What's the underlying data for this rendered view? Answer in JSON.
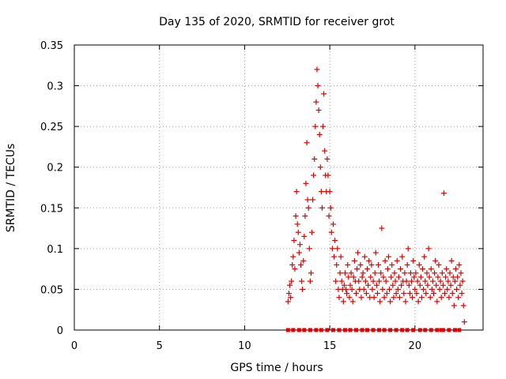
{
  "chart_data": {
    "type": "scatter",
    "title": "Day 135 of 2020, SRMTID for receiver grot",
    "xlabel": "GPS time / hours",
    "ylabel": "SRMTID / TECUs",
    "xlim": [
      0,
      24
    ],
    "ylim": [
      0,
      0.35
    ],
    "x_ticks": [
      0,
      5,
      10,
      15,
      20
    ],
    "x_tick_labels": [
      "0",
      "5",
      "10",
      "15",
      "20"
    ],
    "y_ticks": [
      0,
      0.05,
      0.1,
      0.15,
      0.2,
      0.25,
      0.3,
      0.35
    ],
    "y_tick_labels": [
      "0",
      "0.05",
      "0.1",
      "0.15",
      "0.2",
      "0.25",
      "0.3",
      "0.35"
    ],
    "grid": true,
    "marker": "+",
    "color": "#e00000",
    "series": [
      {
        "name": "SRMTID",
        "points": [
          [
            12.55,
            0.035
          ],
          [
            12.6,
            0.045
          ],
          [
            12.65,
            0.055
          ],
          [
            12.7,
            0.04
          ],
          [
            12.75,
            0.06
          ],
          [
            12.8,
            0.08
          ],
          [
            12.85,
            0.09
          ],
          [
            12.9,
            0.11
          ],
          [
            12.95,
            0.075
          ],
          [
            13.0,
            0.14
          ],
          [
            13.05,
            0.17
          ],
          [
            13.1,
            0.13
          ],
          [
            13.15,
            0.12
          ],
          [
            13.2,
            0.095
          ],
          [
            13.25,
            0.105
          ],
          [
            13.3,
            0.08
          ],
          [
            13.35,
            0.06
          ],
          [
            13.4,
            0.05
          ],
          [
            13.45,
            0.085
          ],
          [
            13.5,
            0.115
          ],
          [
            13.55,
            0.14
          ],
          [
            13.6,
            0.18
          ],
          [
            13.65,
            0.23
          ],
          [
            13.7,
            0.16
          ],
          [
            13.75,
            0.15
          ],
          [
            13.8,
            0.1
          ],
          [
            13.85,
            0.06
          ],
          [
            13.9,
            0.07
          ],
          [
            13.95,
            0.12
          ],
          [
            14.0,
            0.16
          ],
          [
            14.05,
            0.19
          ],
          [
            14.1,
            0.21
          ],
          [
            14.15,
            0.25
          ],
          [
            14.2,
            0.28
          ],
          [
            14.25,
            0.32
          ],
          [
            14.3,
            0.3
          ],
          [
            14.35,
            0.27
          ],
          [
            14.4,
            0.24
          ],
          [
            14.45,
            0.2
          ],
          [
            14.5,
            0.17
          ],
          [
            14.55,
            0.15
          ],
          [
            14.6,
            0.25
          ],
          [
            14.65,
            0.29
          ],
          [
            14.7,
            0.22
          ],
          [
            14.75,
            0.19
          ],
          [
            14.8,
            0.17
          ],
          [
            14.85,
            0.21
          ],
          [
            14.9,
            0.19
          ],
          [
            14.95,
            0.14
          ],
          [
            15.0,
            0.17
          ],
          [
            15.05,
            0.15
          ],
          [
            15.1,
            0.12
          ],
          [
            15.15,
            0.1
          ],
          [
            15.2,
            0.13
          ],
          [
            15.25,
            0.09
          ],
          [
            15.3,
            0.11
          ],
          [
            15.35,
            0.06
          ],
          [
            15.4,
            0.08
          ],
          [
            15.45,
            0.1
          ],
          [
            15.5,
            0.05
          ],
          [
            15.55,
            0.04
          ],
          [
            15.6,
            0.07
          ],
          [
            15.65,
            0.09
          ],
          [
            15.7,
            0.06
          ],
          [
            15.75,
            0.05
          ],
          [
            15.8,
            0.035
          ],
          [
            15.85,
            0.055
          ],
          [
            15.9,
            0.07
          ],
          [
            15.95,
            0.05
          ],
          [
            16.0,
            0.045
          ],
          [
            16.05,
            0.08
          ],
          [
            16.1,
            0.065
          ],
          [
            16.15,
            0.04
          ],
          [
            16.2,
            0.055
          ],
          [
            16.25,
            0.07
          ],
          [
            16.3,
            0.05
          ],
          [
            16.35,
            0.035
          ],
          [
            16.4,
            0.065
          ],
          [
            16.45,
            0.085
          ],
          [
            16.5,
            0.06
          ],
          [
            16.55,
            0.045
          ],
          [
            16.6,
            0.075
          ],
          [
            16.65,
            0.095
          ],
          [
            16.7,
            0.06
          ],
          [
            16.75,
            0.05
          ],
          [
            16.8,
            0.08
          ],
          [
            16.85,
            0.04
          ],
          [
            16.9,
            0.065
          ],
          [
            16.95,
            0.07
          ],
          [
            17.0,
            0.05
          ],
          [
            17.05,
            0.09
          ],
          [
            17.1,
            0.06
          ],
          [
            17.15,
            0.045
          ],
          [
            17.2,
            0.075
          ],
          [
            17.25,
            0.055
          ],
          [
            17.3,
            0.085
          ],
          [
            17.35,
            0.04
          ],
          [
            17.4,
            0.065
          ],
          [
            17.45,
            0.08
          ],
          [
            17.5,
            0.05
          ],
          [
            17.55,
            0.06
          ],
          [
            17.6,
            0.04
          ],
          [
            17.65,
            0.07
          ],
          [
            17.7,
            0.095
          ],
          [
            17.75,
            0.055
          ],
          [
            17.8,
            0.045
          ],
          [
            17.85,
            0.08
          ],
          [
            17.9,
            0.06
          ],
          [
            17.95,
            0.035
          ],
          [
            18.0,
            0.07
          ],
          [
            18.05,
            0.125
          ],
          [
            18.1,
            0.05
          ],
          [
            18.15,
            0.065
          ],
          [
            18.2,
            0.04
          ],
          [
            18.25,
            0.085
          ],
          [
            18.3,
            0.06
          ],
          [
            18.35,
            0.045
          ],
          [
            18.4,
            0.075
          ],
          [
            18.45,
            0.09
          ],
          [
            18.5,
            0.05
          ],
          [
            18.55,
            0.035
          ],
          [
            18.6,
            0.065
          ],
          [
            18.65,
            0.08
          ],
          [
            18.7,
            0.055
          ],
          [
            18.75,
            0.04
          ],
          [
            18.8,
            0.07
          ],
          [
            18.85,
            0.06
          ],
          [
            18.9,
            0.045
          ],
          [
            18.95,
            0.085
          ],
          [
            19.0,
            0.05
          ],
          [
            19.05,
            0.065
          ],
          [
            19.1,
            0.04
          ],
          [
            19.15,
            0.075
          ],
          [
            19.2,
            0.055
          ],
          [
            19.25,
            0.09
          ],
          [
            19.3,
            0.06
          ],
          [
            19.35,
            0.045
          ],
          [
            19.4,
            0.07
          ],
          [
            19.45,
            0.035
          ],
          [
            19.5,
            0.06
          ],
          [
            19.55,
            0.08
          ],
          [
            19.6,
            0.1
          ],
          [
            19.65,
            0.055
          ],
          [
            19.7,
            0.045
          ],
          [
            19.75,
            0.07
          ],
          [
            19.8,
            0.06
          ],
          [
            19.85,
            0.04
          ],
          [
            19.9,
            0.085
          ],
          [
            19.95,
            0.065
          ],
          [
            20.0,
            0.05
          ],
          [
            20.05,
            0.07
          ],
          [
            20.1,
            0.045
          ],
          [
            20.15,
            0.06
          ],
          [
            20.2,
            0.035
          ],
          [
            20.25,
            0.08
          ],
          [
            20.3,
            0.055
          ],
          [
            20.35,
            0.065
          ],
          [
            20.4,
            0.04
          ],
          [
            20.45,
            0.075
          ],
          [
            20.5,
            0.05
          ],
          [
            20.55,
            0.09
          ],
          [
            20.6,
            0.06
          ],
          [
            20.65,
            0.045
          ],
          [
            20.7,
            0.07
          ],
          [
            20.75,
            0.055
          ],
          [
            20.8,
            0.1
          ],
          [
            20.85,
            0.065
          ],
          [
            20.9,
            0.04
          ],
          [
            20.95,
            0.075
          ],
          [
            21.0,
            0.05
          ],
          [
            21.05,
            0.06
          ],
          [
            21.1,
            0.045
          ],
          [
            21.15,
            0.07
          ],
          [
            21.2,
            0.085
          ],
          [
            21.25,
            0.055
          ],
          [
            21.3,
            0.035
          ],
          [
            21.35,
            0.065
          ],
          [
            21.4,
            0.08
          ],
          [
            21.45,
            0.05
          ],
          [
            21.5,
            0.06
          ],
          [
            21.55,
            0.04
          ],
          [
            21.6,
            0.07
          ],
          [
            21.65,
            0.055
          ],
          [
            21.7,
            0.168
          ],
          [
            21.75,
            0.045
          ],
          [
            21.8,
            0.065
          ],
          [
            21.85,
            0.075
          ],
          [
            21.9,
            0.05
          ],
          [
            21.95,
            0.06
          ],
          [
            22.0,
            0.04
          ],
          [
            22.05,
            0.07
          ],
          [
            22.1,
            0.055
          ],
          [
            22.15,
            0.085
          ],
          [
            22.2,
            0.045
          ],
          [
            22.25,
            0.065
          ],
          [
            22.3,
            0.03
          ],
          [
            22.35,
            0.06
          ],
          [
            22.4,
            0.075
          ],
          [
            22.45,
            0.05
          ],
          [
            22.5,
            0.065
          ],
          [
            22.55,
            0.04
          ],
          [
            22.6,
            0.08
          ],
          [
            22.65,
            0.055
          ],
          [
            22.7,
            0.07
          ],
          [
            22.75,
            0.045
          ],
          [
            22.8,
            0.06
          ],
          [
            22.85,
            0.03
          ],
          [
            22.9,
            0.01
          ]
        ]
      }
    ],
    "zero_markers": [
      12.55,
      12.85,
      13.2,
      13.5,
      13.85,
      14.2,
      14.5,
      14.85,
      15.2,
      15.55,
      15.9,
      16.2,
      16.55,
      16.9,
      17.2,
      17.55,
      17.9,
      18.2,
      18.55,
      18.9,
      19.25,
      19.55,
      19.9,
      20.3,
      20.6,
      20.95,
      21.3,
      21.55,
      21.65,
      22.0,
      22.35,
      22.6
    ]
  }
}
